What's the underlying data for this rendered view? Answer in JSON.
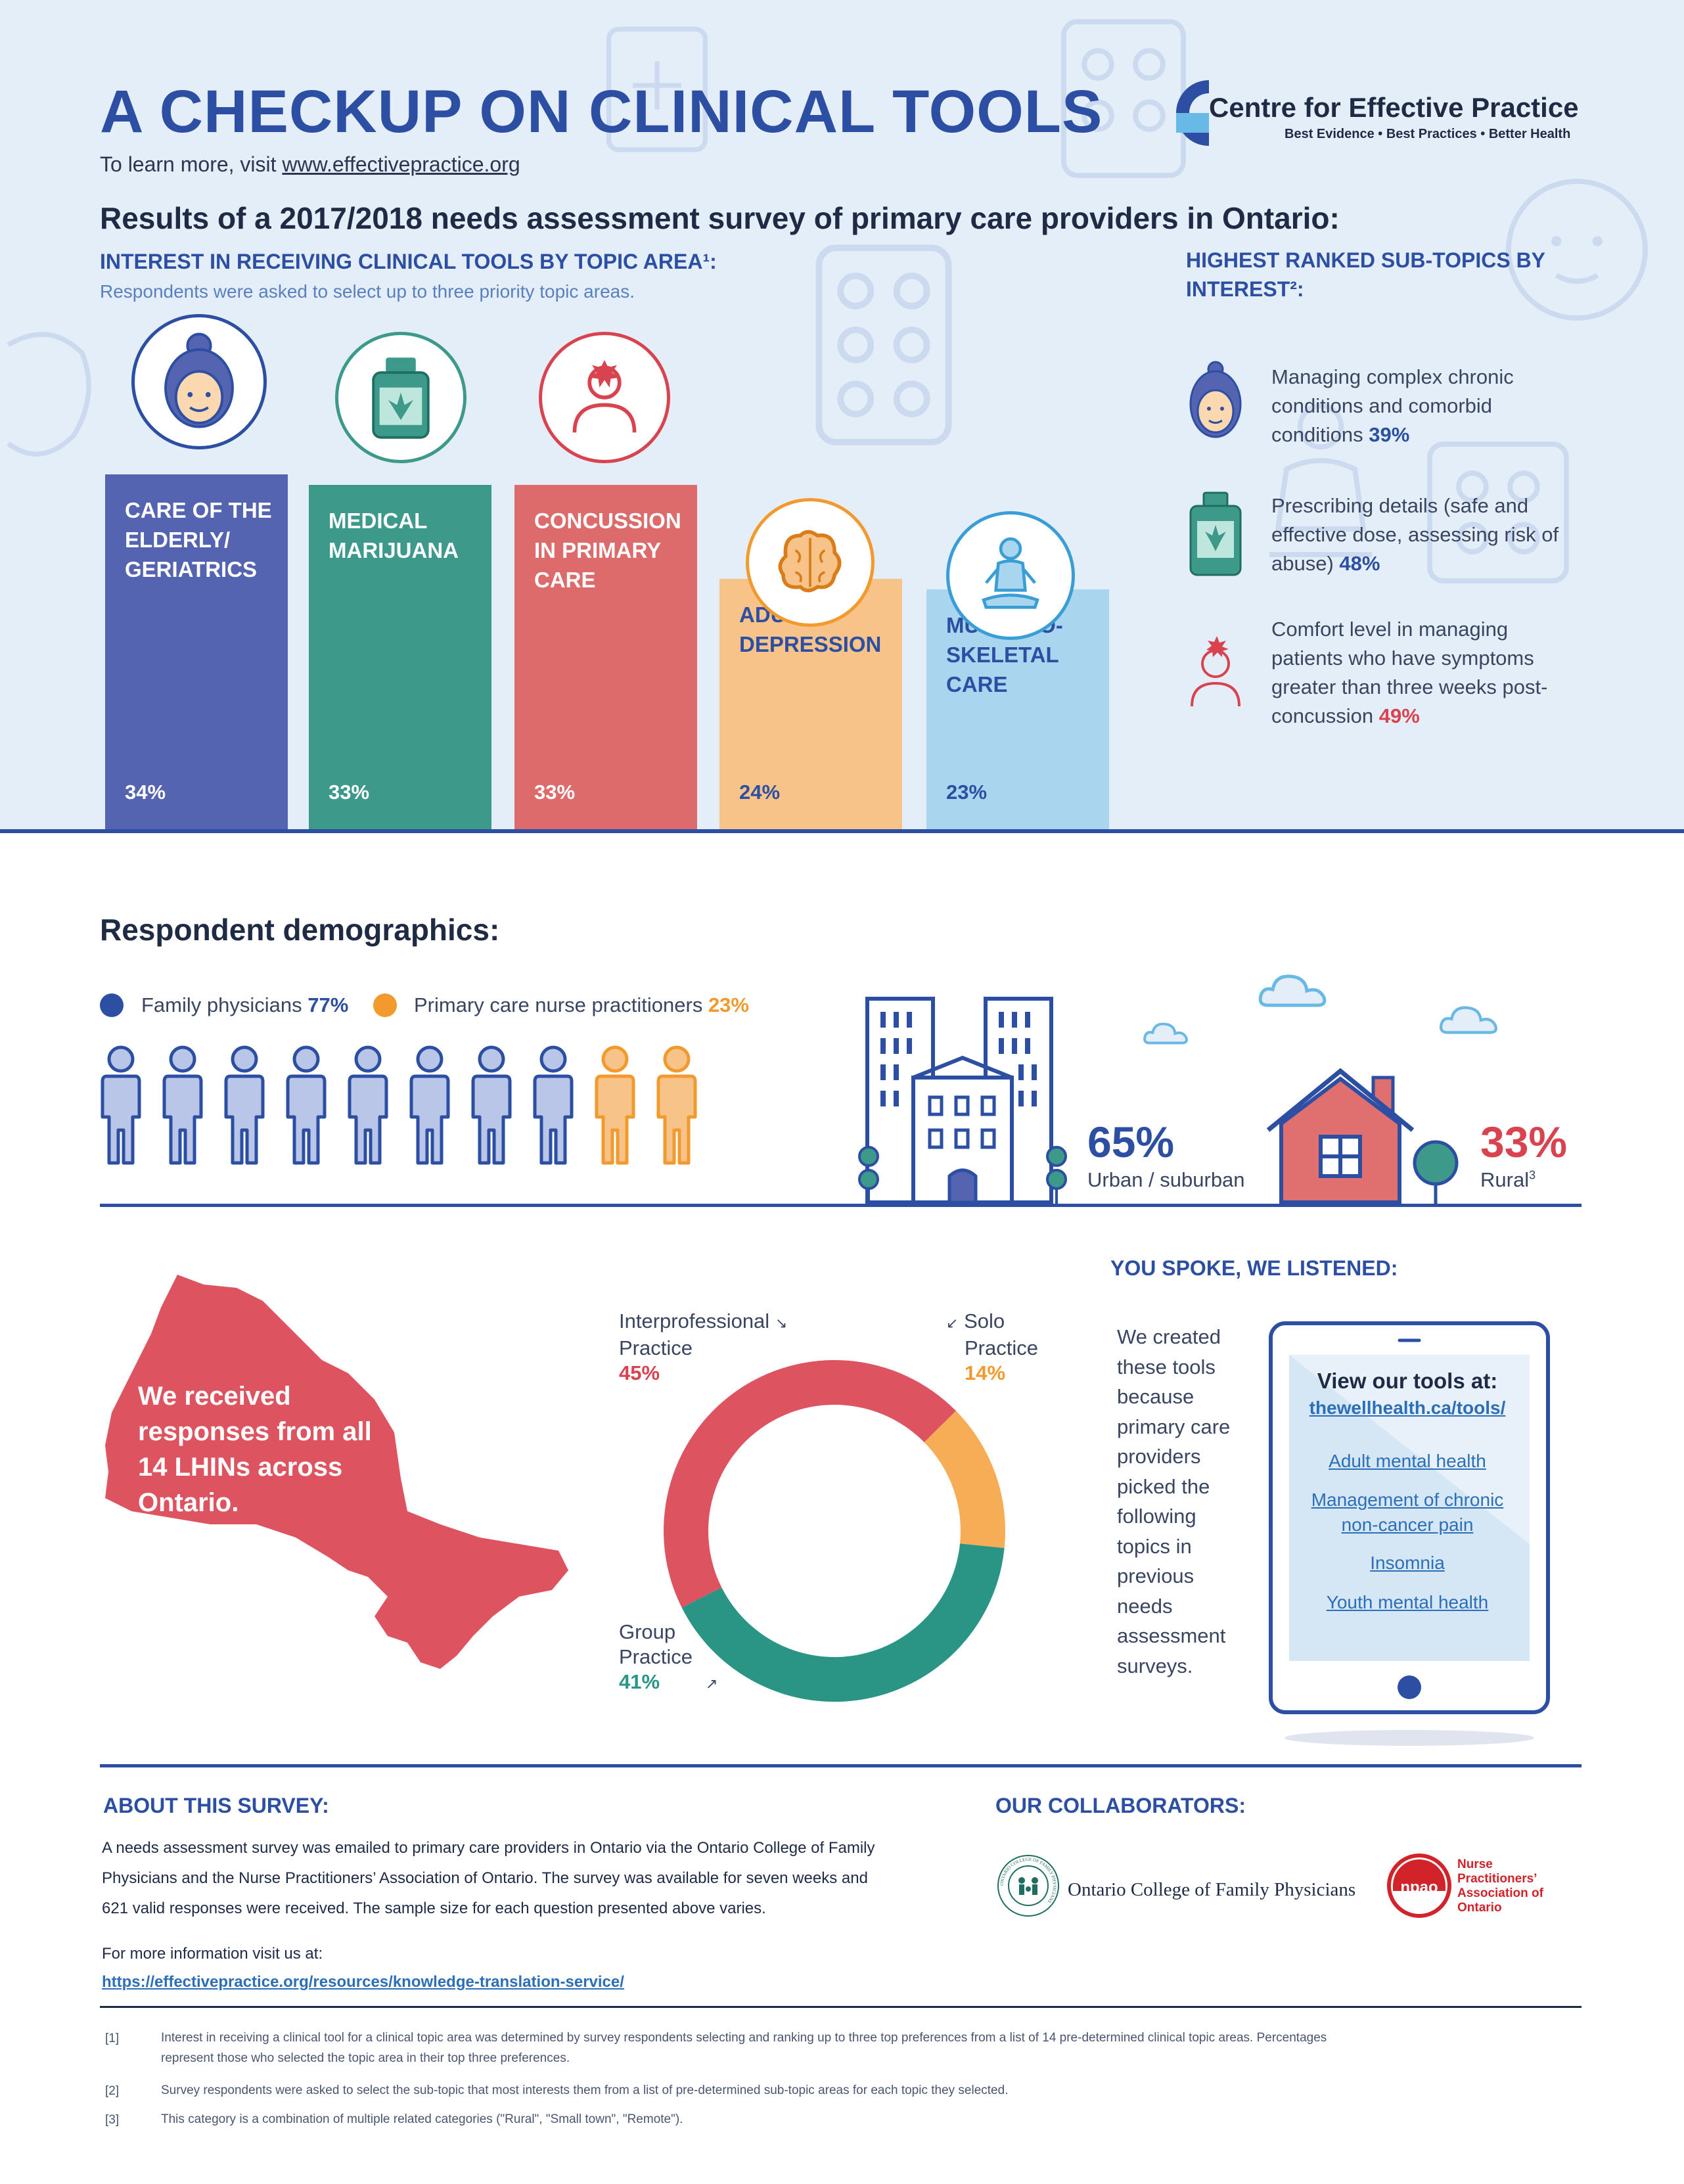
{
  "header": {
    "title": "A CHECKUP ON CLINICAL TOOLS",
    "learn_more_prefix": "To learn more, visit ",
    "learn_more_url": "www.effectivepractice.org",
    "org_name": "Centre for Effective Practice",
    "org_tagline": "Best Evidence  •  Best Practices  •  Better Health",
    "results_heading": "Results of a 2017/2018 needs assessment survey of primary care providers in Ontario:"
  },
  "topic_section": {
    "heading": "INTEREST IN RECEIVING CLINICAL TOOLS BY TOPIC AREA¹:",
    "subheading": "Respondents were asked to select up to three priority topic areas."
  },
  "chart_data": [
    {
      "type": "bar",
      "title": "INTEREST IN RECEIVING CLINICAL TOOLS BY TOPIC AREA¹:",
      "categories": [
        "CARE OF THE ELDERLY/ GERIATRICS",
        "MEDICAL MARIJUANA",
        "CONCUSSION IN PRIMARY CARE",
        "ADULT DEPRESSION",
        "MUSCULO-SKELETAL CARE"
      ],
      "category_lines": [
        [
          "CARE OF THE",
          "ELDERLY/",
          "GERIATRICS"
        ],
        [
          "MEDICAL",
          "MARIJUANA"
        ],
        [
          "CONCUSSION",
          "IN PRIMARY",
          "CARE"
        ],
        [
          "ADULT",
          "DEPRESSION"
        ],
        [
          "MUSCULO-",
          "SKELETAL",
          "CARE"
        ]
      ],
      "values": [
        34,
        33,
        33,
        24,
        23
      ],
      "value_labels": [
        "34%",
        "33%",
        "33%",
        "24%",
        "23%"
      ],
      "colors": [
        "#5464b0",
        "#3d9a8a",
        "#dd6b6b",
        "#f7c389",
        "#a9d6ee"
      ],
      "icons": [
        "elderly-woman-icon",
        "cannabis-bottle-icon",
        "head-injury-icon",
        "brain-icon",
        "meditating-person-icon"
      ],
      "ylim": [
        0,
        34
      ]
    },
    {
      "type": "pie",
      "title": "",
      "labels": [
        "Interprofessional Practice",
        "Solo Practice",
        "Group Practice"
      ],
      "values": [
        45,
        14,
        41
      ],
      "value_labels": [
        "45%",
        "14%",
        "41%"
      ],
      "colors": [
        "#dd5460",
        "#f7ad55",
        "#2a9585"
      ]
    }
  ],
  "subtopics": {
    "heading_line1": "HIGHEST RANKED SUB-TOPICS BY",
    "heading_line2": "INTEREST²:",
    "items": [
      {
        "lines": [
          "Managing complex chronic",
          "conditions and comorbid"
        ],
        "last": "conditions ",
        "pct": "39%",
        "icon": "elderly-woman-icon"
      },
      {
        "lines": [
          "Prescribing details (safe and",
          "effective dose, assessing risk of"
        ],
        "last": "abuse) ",
        "pct": "48%",
        "icon": "cannabis-bottle-icon"
      },
      {
        "lines": [
          "Comfort level in managing",
          "patients who have symptoms",
          "greater than three weeks post-"
        ],
        "last": "concussion ",
        "pct": "49%",
        "icon": "head-injury-icon"
      }
    ]
  },
  "demographics": {
    "heading": "Respondent demographics:",
    "fp_label": "Family physicians ",
    "fp_pct": "77%",
    "np_label": "Primary care nurse practitioners ",
    "np_pct": "23%",
    "people_fp_count": 8,
    "people_np_count": 2,
    "urban_pct": "65%",
    "urban_label": "Urban / suburban",
    "rural_pct": "33%",
    "rural_label": "Rural",
    "rural_sup": "3"
  },
  "lhin": {
    "lines": [
      "We received",
      "responses from all",
      "14 LHINs across",
      "Ontario."
    ]
  },
  "donut_labels": {
    "interprofessional": {
      "lines": [
        "Interprofessional",
        "Practice"
      ],
      "pct": "45%",
      "arrow": "↘"
    },
    "solo": {
      "lines": [
        "Solo",
        "Practice"
      ],
      "pct": "14%",
      "arrow": "↙"
    },
    "group": {
      "lines": [
        "Group",
        "Practice"
      ],
      "pct": "41%",
      "arrow": "↗"
    }
  },
  "you_spoke": {
    "heading": "YOU SPOKE, WE LISTENED:",
    "lines": [
      "We created",
      "these tools",
      "because",
      "primary care",
      "providers",
      "picked the",
      "following",
      "topics in",
      "previous",
      "needs",
      "assessment",
      "surveys."
    ],
    "view_tools": "View our tools at:",
    "url": "thewellhealth.ca/tools/",
    "links": [
      {
        "lines": [
          "Adult mental health"
        ]
      },
      {
        "lines": [
          "Management of chronic",
          "non-cancer pain"
        ]
      },
      {
        "lines": [
          "Insomnia"
        ]
      },
      {
        "lines": [
          "Youth mental health"
        ]
      }
    ]
  },
  "about": {
    "heading": "ABOUT THIS SURVEY:",
    "lines": [
      "A needs assessment survey was emailed to primary care providers in Ontario via the Ontario College of Family",
      "Physicians and the Nurse Practitioners’ Association of Ontario. The survey was available for seven weeks and",
      "621 valid responses were received. The sample size for each question presented above varies."
    ],
    "more_info": "For more information visit us at:",
    "more_link": "https://effectivepractice.org/resources/knowledge-translation-service/"
  },
  "collaborators": {
    "heading": "OUR COLLABORATORS:",
    "ocfp": "Ontario College of Family Physicians",
    "ocfp_seal_text": "ONTARIO COLLEGE OF FAMILY PHYSICIANS",
    "npao_lines": [
      "Nurse",
      "Practitioners’",
      "Association of",
      "Ontario"
    ],
    "npao_logo": "npao"
  },
  "footnotes": [
    {
      "num": "[1]",
      "lines": [
        "Interest in receiving a clinical tool for a clinical topic area was determined by survey respondents selecting and ranking up to three top preferences from a list of 14 pre-determined clinical topic areas. Percentages",
        "represent those who selected the topic area in their top three preferences."
      ]
    },
    {
      "num": "[2]",
      "lines": [
        "Survey respondents were asked to select the sub-topic that most interests them from a list of pre-determined sub-topic areas for each topic they selected."
      ]
    },
    {
      "num": "[3]",
      "lines": [
        "This category is a combination of multiple related categories (\"Rural\", \"Small town\", \"Remote\")."
      ]
    }
  ]
}
